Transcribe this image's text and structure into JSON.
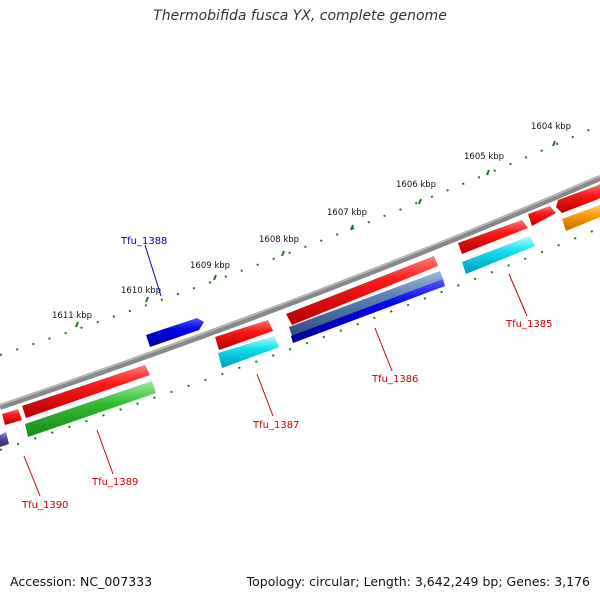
{
  "title": "Thermobifida fusca YX, complete genome",
  "footer": {
    "accession": "Accession: NC_007333",
    "summary": "Topology: circular; Length: 3,642,249 bp; Genes: 3,176"
  },
  "colors": {
    "backbone": "#888888",
    "tick": "#1a7a1a",
    "forward_gene": "#e00000",
    "forward_label": "#cc0000",
    "reverse_gene_label": "#0000bb"
  },
  "ruler": [
    {
      "label": "1604 kbp"
    },
    {
      "label": "1605 kbp"
    },
    {
      "label": "1606 kbp"
    },
    {
      "label": "1607 kbp"
    },
    {
      "label": "1608 kbp"
    },
    {
      "label": "1609 kbp"
    },
    {
      "label": "1610 kbp"
    },
    {
      "label": "1611 kbp"
    }
  ],
  "gene_labels": [
    {
      "name": "Tfu_1388",
      "color": "#0000bb"
    },
    {
      "name": "Tfu_1385",
      "color": "#cc0000"
    },
    {
      "name": "Tfu_1386",
      "color": "#cc0000"
    },
    {
      "name": "Tfu_1387",
      "color": "#cc0000"
    },
    {
      "name": "Tfu_1389",
      "color": "#cc0000"
    },
    {
      "name": "Tfu_1390",
      "color": "#cc0000"
    }
  ]
}
